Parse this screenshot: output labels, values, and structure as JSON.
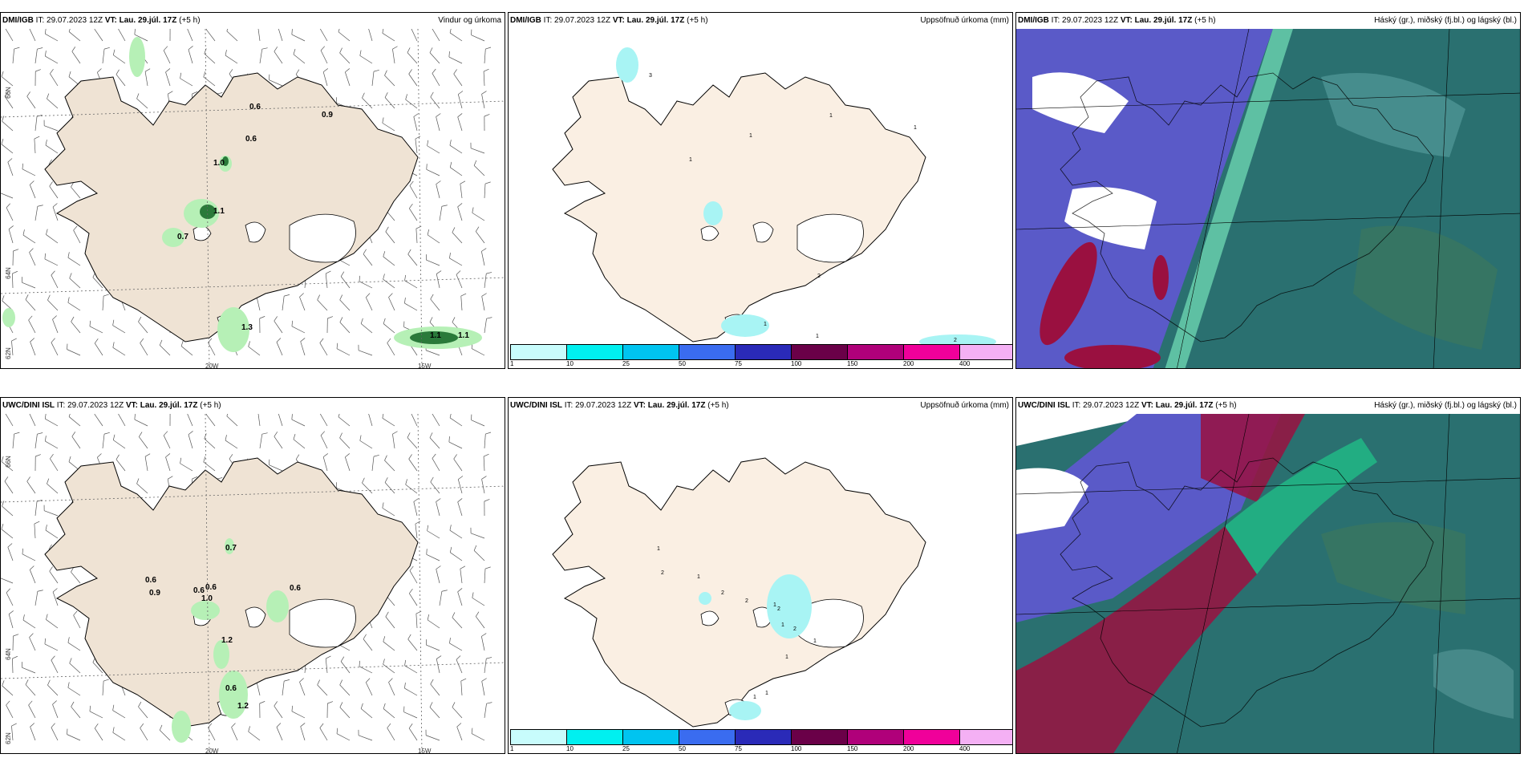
{
  "panels": [
    {
      "row": 0,
      "col": 0,
      "model": "DMI/IGB",
      "it_label": "IT:",
      "it_value": "29.07.2023 12Z",
      "vt_label": "VT:",
      "vt_value": "Lau. 29.júl. 17Z",
      "offset": "(+5 h)",
      "title": "Vindur og úrkoma",
      "values": [
        "0.6",
        "0.9",
        "0.6",
        "1.0",
        "1.1",
        "0.7",
        "1.3",
        "1.1",
        "1.1"
      ]
    },
    {
      "row": 0,
      "col": 1,
      "model": "DMI/IGB",
      "it_label": "IT:",
      "it_value": "29.07.2023 12Z",
      "vt_label": "VT:",
      "vt_value": "Lau. 29.júl. 17Z",
      "offset": "(+5 h)",
      "title": "Uppsöfnuð úrkoma (mm)",
      "values": [
        "3",
        "1",
        "1",
        "1",
        "1",
        "2",
        "1",
        "1",
        "2"
      ]
    },
    {
      "row": 0,
      "col": 2,
      "model": "DMI/IGB",
      "it_label": "IT:",
      "it_value": "29.07.2023 12Z",
      "vt_label": "VT:",
      "vt_value": "Lau. 29.júl. 17Z",
      "offset": "(+5 h)",
      "title": "Háský (gr.), miðský (fj.bl.) og lágský (bl.)"
    },
    {
      "row": 1,
      "col": 0,
      "model": "UWC/DINI ISL",
      "it_label": "IT:",
      "it_value": "29.07.2023 12Z",
      "vt_label": "VT:",
      "vt_value": "Lau. 29.júl. 17Z",
      "offset": "(+5 h)",
      "title": "",
      "values": [
        "0.7",
        "0.6",
        "0.9",
        "0.6",
        "0.6",
        "1.0",
        "0.6",
        "1.2",
        "0.6",
        "1.2"
      ]
    },
    {
      "row": 1,
      "col": 1,
      "model": "UWC/DINI ISL",
      "it_label": "IT:",
      "it_value": "29.07.2023 12Z",
      "vt_label": "VT:",
      "vt_value": "Lau. 29.júl. 17Z",
      "offset": "(+5 h)",
      "title": "Uppsöfnuð úrkoma (mm)",
      "values": [
        "1",
        "2",
        "1",
        "2",
        "2",
        "2",
        "1",
        "1",
        "2",
        "1",
        "1",
        "1",
        "1"
      ]
    },
    {
      "row": 1,
      "col": 2,
      "model": "UWC/DINI ISL",
      "it_label": "IT:",
      "it_value": "29.07.2023 12Z",
      "vt_label": "VT:",
      "vt_value": "Lau. 29.júl. 17Z",
      "offset": "(+5 h)",
      "title": "Háský (gr.), miðský (fj.bl.) og lágský (bl.)"
    }
  ],
  "axis_labels": {
    "lat_66": "66N",
    "lat_64": "64N",
    "lat_62": "62N",
    "lon_20": "20W",
    "lon_15": "15W"
  },
  "colorbar": {
    "colors": [
      "#c8fcfc",
      "#00f0f0",
      "#00c4f0",
      "#3a6cf0",
      "#2a2ab8",
      "#6a0048",
      "#b0007a",
      "#f0009a",
      "#f4b0f4"
    ],
    "labels": [
      "1",
      "10",
      "25",
      "50",
      "75",
      "100",
      "150",
      "200",
      "400"
    ]
  },
  "colors": {
    "land": "#efe3d4",
    "land_precip": "#faefe3",
    "precip_light": "#b6f0b6",
    "precip_dark": "#2a7a3a",
    "cloud_high": "#2a6a6a",
    "cloud_mid": "#5a5ac8",
    "cloud_low": "#9a1040",
    "cyan_precip": "#a8f4f4"
  }
}
